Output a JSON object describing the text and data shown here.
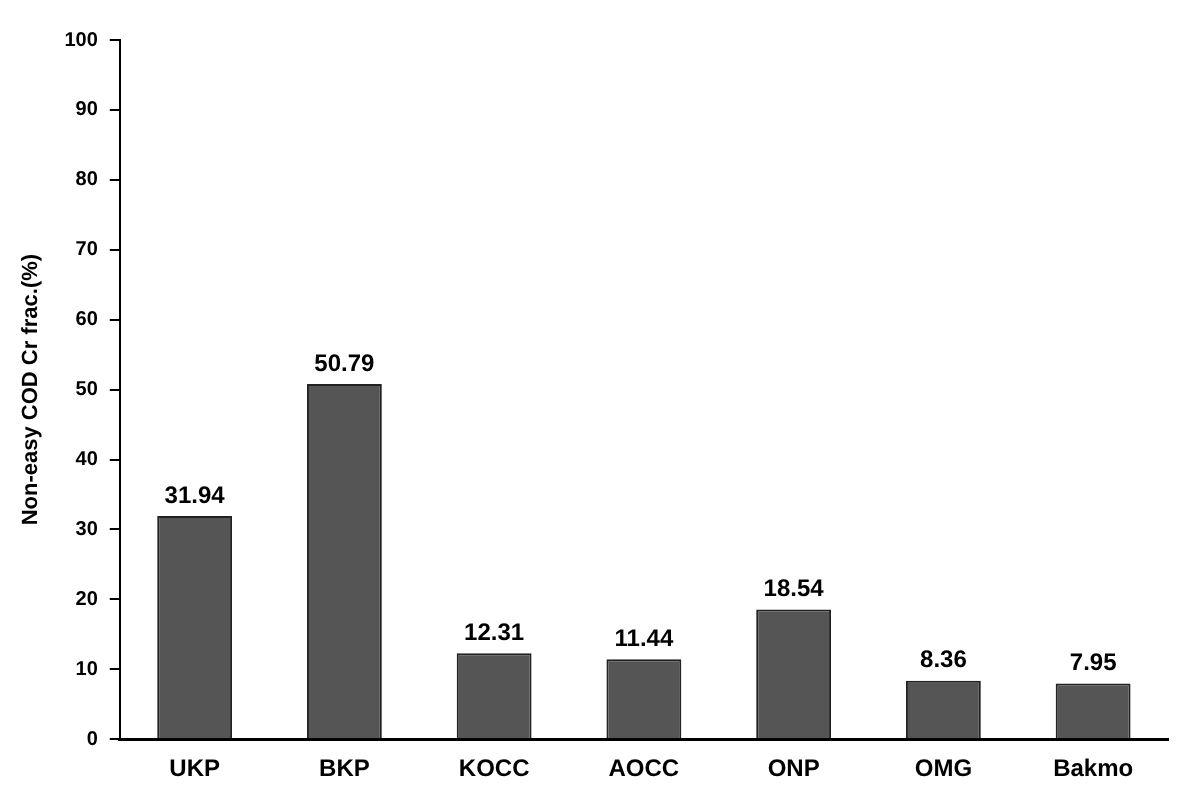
{
  "chart_data": {
    "type": "bar",
    "ylabel": "Non-easy COD Cr frac.(%)",
    "categories": [
      "UKP",
      "BKP",
      "KOCC",
      "AOCC",
      "ONP",
      "OMG",
      "Bakmo"
    ],
    "values": [
      31.94,
      50.79,
      12.31,
      11.44,
      18.54,
      8.36,
      7.95
    ],
    "color": "#555555",
    "ylim": [
      0,
      100
    ],
    "yticks": [
      0,
      10,
      20,
      30,
      40,
      50,
      60,
      70,
      80,
      90,
      100
    ],
    "data_labels": true,
    "grid": false,
    "legend": false
  }
}
